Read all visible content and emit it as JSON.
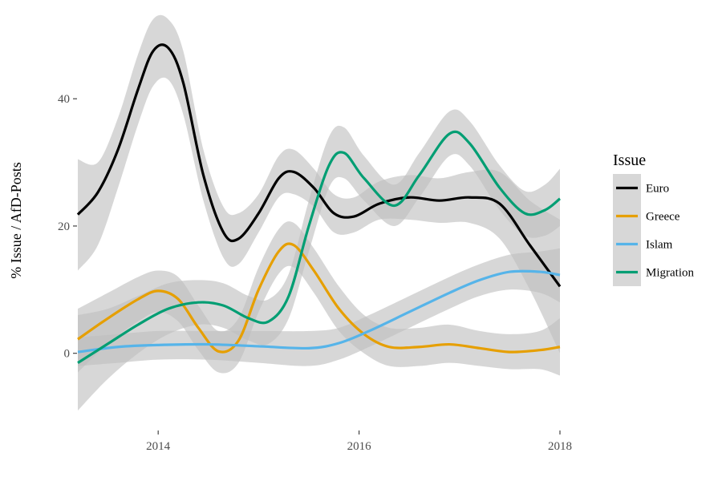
{
  "chart_data": {
    "type": "line",
    "title": "",
    "xlabel": "",
    "ylabel": "% Issue / AfD-Posts",
    "xlim": [
      2013.2,
      2018.0
    ],
    "ylim": [
      -11,
      53
    ],
    "x_ticks": [
      2014,
      2016,
      2018
    ],
    "x_tick_labels": [
      "2014",
      "2016",
      "2018"
    ],
    "y_ticks": [
      0,
      20,
      40
    ],
    "y_tick_labels": [
      "0",
      "20",
      "40"
    ],
    "grid": false,
    "legend": {
      "title": "Issue",
      "position": "right"
    },
    "band_color": "#bebebe",
    "series": [
      {
        "name": "Euro",
        "color": "#000000",
        "points": [
          [
            2013.2,
            21.8,
            13,
            30.5
          ],
          [
            2013.4,
            25.3,
            17,
            30
          ],
          [
            2013.6,
            32,
            26,
            37
          ],
          [
            2013.8,
            41.5,
            36,
            47
          ],
          [
            2013.95,
            47.5,
            42,
            52.5
          ],
          [
            2014.1,
            48,
            43,
            52.5
          ],
          [
            2014.25,
            42.5,
            37.5,
            47.5
          ],
          [
            2014.45,
            28,
            24,
            32
          ],
          [
            2014.65,
            19,
            15,
            23
          ],
          [
            2014.8,
            18,
            14,
            22
          ],
          [
            2015.0,
            22,
            19,
            25
          ],
          [
            2015.2,
            27.5,
            24.5,
            31
          ],
          [
            2015.35,
            28.5,
            25,
            32
          ],
          [
            2015.55,
            26,
            23,
            29
          ],
          [
            2015.75,
            22,
            19,
            25
          ],
          [
            2015.95,
            21.5,
            19,
            24.5
          ],
          [
            2016.2,
            23.5,
            21,
            27
          ],
          [
            2016.5,
            24.5,
            21,
            28
          ],
          [
            2016.8,
            24,
            20.5,
            27.5
          ],
          [
            2017.1,
            24.5,
            20.5,
            28.5
          ],
          [
            2017.4,
            23.5,
            18,
            28.5
          ],
          [
            2017.7,
            17,
            10,
            24
          ],
          [
            2018.0,
            10.5,
            0,
            21
          ]
        ]
      },
      {
        "name": "Greece",
        "color": "#E69F00",
        "points": [
          [
            2013.2,
            2.2,
            -3,
            7
          ],
          [
            2013.5,
            5.5,
            1.5,
            9.5
          ],
          [
            2013.8,
            8.5,
            5,
            12
          ],
          [
            2014.0,
            9.8,
            6.5,
            13
          ],
          [
            2014.2,
            8.5,
            5,
            12
          ],
          [
            2014.4,
            4,
            0.5,
            7.5
          ],
          [
            2014.6,
            0.3,
            -3,
            3.5
          ],
          [
            2014.8,
            2,
            -1.5,
            5.5
          ],
          [
            2015.0,
            10,
            6.5,
            13.5
          ],
          [
            2015.2,
            16,
            12.5,
            19.5
          ],
          [
            2015.35,
            17,
            13.5,
            20.5
          ],
          [
            2015.55,
            13,
            9.5,
            16.5
          ],
          [
            2015.8,
            7,
            3.5,
            10.5
          ],
          [
            2016.05,
            3,
            0,
            6
          ],
          [
            2016.3,
            1,
            -2,
            4
          ],
          [
            2016.6,
            1,
            -2,
            4
          ],
          [
            2016.9,
            1.4,
            -1.5,
            4.5
          ],
          [
            2017.2,
            0.8,
            -2,
            3.5
          ],
          [
            2017.5,
            0.2,
            -2.5,
            3
          ],
          [
            2017.8,
            0.5,
            -2.5,
            3.5
          ],
          [
            2018.0,
            1,
            -3.5,
            5.5
          ]
        ]
      },
      {
        "name": "Islam",
        "color": "#56B4E9",
        "points": [
          [
            2013.2,
            0.2,
            -2,
            2.5
          ],
          [
            2013.6,
            1,
            -1.5,
            3
          ],
          [
            2014.0,
            1.3,
            -1,
            3.5
          ],
          [
            2014.5,
            1.4,
            -1,
            3.5
          ],
          [
            2015.0,
            1.1,
            -1.5,
            3.5
          ],
          [
            2015.5,
            0.8,
            -2,
            3.5
          ],
          [
            2015.8,
            1.6,
            -1,
            4
          ],
          [
            2016.1,
            3.5,
            1,
            6
          ],
          [
            2016.5,
            6.5,
            4,
            9
          ],
          [
            2016.9,
            9.5,
            7,
            12
          ],
          [
            2017.2,
            11.5,
            9,
            14
          ],
          [
            2017.5,
            12.8,
            10,
            15.5
          ],
          [
            2017.8,
            12.8,
            9.5,
            16
          ],
          [
            2018.0,
            12.3,
            8,
            16.5
          ]
        ]
      },
      {
        "name": "Migration",
        "color": "#009E73",
        "points": [
          [
            2013.2,
            -1.5,
            -9,
            6
          ],
          [
            2013.5,
            1.5,
            -4,
            7
          ],
          [
            2013.8,
            4.5,
            0,
            9
          ],
          [
            2014.1,
            7,
            3,
            11
          ],
          [
            2014.4,
            8,
            4.5,
            11.5
          ],
          [
            2014.65,
            7.5,
            4,
            11
          ],
          [
            2014.9,
            5.5,
            2,
            9
          ],
          [
            2015.1,
            5,
            1.5,
            8.5
          ],
          [
            2015.3,
            9,
            5.5,
            12.5
          ],
          [
            2015.5,
            20,
            16,
            24
          ],
          [
            2015.7,
            29.5,
            26,
            34
          ],
          [
            2015.85,
            31.5,
            27.5,
            35.5
          ],
          [
            2016.05,
            27.5,
            24,
            31
          ],
          [
            2016.35,
            23.2,
            20,
            26.5
          ],
          [
            2016.6,
            28,
            24.5,
            31.5
          ],
          [
            2016.9,
            34.5,
            31,
            38
          ],
          [
            2017.1,
            33,
            29.5,
            36.5
          ],
          [
            2017.4,
            26,
            22.5,
            29.5
          ],
          [
            2017.65,
            22,
            18.5,
            25.5
          ],
          [
            2017.85,
            22.5,
            18.5,
            26.5
          ],
          [
            2018.0,
            24.3,
            20,
            29
          ]
        ]
      }
    ]
  }
}
